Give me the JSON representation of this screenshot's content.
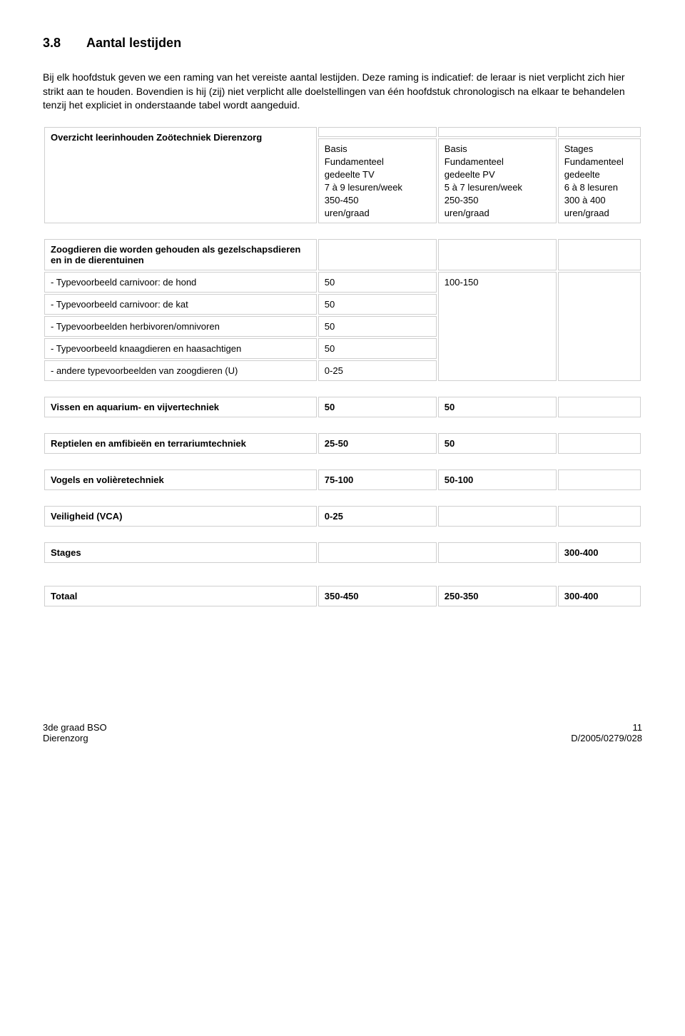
{
  "section": {
    "num": "3.8",
    "title": "Aantal lestijden"
  },
  "intro": "Bij elk hoofdstuk geven we een raming van het vereiste aantal lestijden. Deze raming is indicatief: de leraar is niet verplicht zich hier strikt aan te houden. Bovendien is hij (zij) niet verplicht alle doelstellingen van één hoofdstuk chronologisch na elkaar te behandelen tenzij het expliciet in onderstaande tabel wordt aangeduid.",
  "table1": {
    "title": "Overzicht leerinhouden Zoötechniek Dierenzorg",
    "col2": {
      "l1": "Basis",
      "l2": "Fundamenteel",
      "l3": "gedeelte TV",
      "l4": "7 à 9 lesuren/week",
      "l5": "350-450",
      "l6": "uren/graad"
    },
    "col3": {
      "l1": "Basis",
      "l2": "Fundamenteel",
      "l3": "gedeelte PV",
      "l4": "5 à 7 lesuren/week",
      "l5": "250-350",
      "l6": "uren/graad"
    },
    "col4": {
      "l1": "Stages",
      "l2": "Fundamenteel",
      "l3": "gedeelte",
      "l4": "6 à 8 lesuren",
      "l5": "300 à 400",
      "l6": "uren/graad"
    }
  },
  "zoog": {
    "title": "Zoogdieren die worden gehouden als gezelschapsdieren en in de dierentuinen",
    "r1": {
      "label": "- Typevoorbeeld carnivoor: de hond",
      "c2": "50",
      "c3": "100-150"
    },
    "r2": {
      "label": "- Typevoorbeeld carnivoor: de kat",
      "c2": "50"
    },
    "r3": {
      "label": "- Typevoorbeelden herbivoren/omnivoren",
      "c2": "50"
    },
    "r4": {
      "label": "- Typevoorbeeld knaagdieren en haasachtigen",
      "c2": "50"
    },
    "r5": {
      "label": "- andere typevoorbeelden van zoogdieren (U)",
      "c2": "0-25"
    }
  },
  "vissen": {
    "label": "Vissen en aquarium- en vijvertechniek",
    "c2": "50",
    "c3": "50"
  },
  "reptiel": {
    "label": "Reptielen en amfibieën en terrariumtechniek",
    "c2": "25-50",
    "c3": "50"
  },
  "vogels": {
    "label": "Vogels en volièretechniek",
    "c2": "75-100",
    "c3": "50-100"
  },
  "veilig": {
    "label": "Veiligheid (VCA)",
    "c2": "0-25"
  },
  "stages": {
    "label": "Stages",
    "c4": "300-400"
  },
  "totaal": {
    "label": "Totaal",
    "c2": "350-450",
    "c3": "250-350",
    "c4": "300-400"
  },
  "footer": {
    "left1": "3de graad BSO",
    "left2": "Dierenzorg",
    "right1": "11",
    "right2": "D/2005/0279/028"
  }
}
